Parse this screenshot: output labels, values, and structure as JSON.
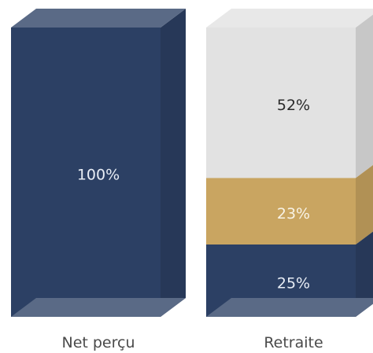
{
  "chart_data": {
    "type": "bar",
    "stacked": true,
    "style": "3d",
    "categories": [
      "Net perçu",
      "Retraite"
    ],
    "series": [
      {
        "values": [
          100,
          25
        ],
        "labels": [
          "100%",
          "25%"
        ]
      },
      {
        "values": [
          0,
          23
        ],
        "labels": [
          "",
          "23%"
        ]
      },
      {
        "values": [
          0,
          52
        ],
        "labels": [
          "",
          "52%"
        ]
      }
    ],
    "series_colors": [
      "#2c4064",
      "#c9a561",
      "#e2e2e2"
    ],
    "label_colors": [
      "#e8edf5",
      "#f8f3e6",
      "#2a2a2a"
    ],
    "ylim": [
      0,
      100
    ],
    "legend": "none",
    "grid": false
  }
}
